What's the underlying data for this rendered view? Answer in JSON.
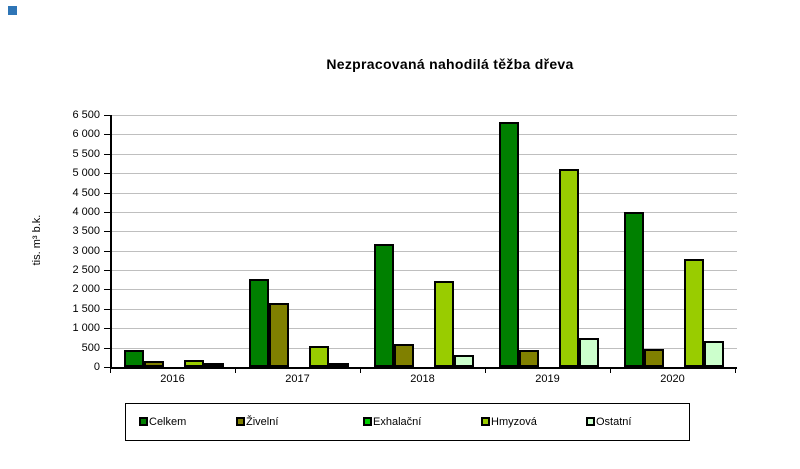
{
  "decorations": {
    "corner_marker_color": "#2E75B6",
    "gridline_color": "#BFBFBF",
    "axis_color": "#000000"
  },
  "chart_data": {
    "type": "bar",
    "title": "Nezpracovaná nahodilá těžba dřeva",
    "xlabel": "",
    "ylabel": "tis. m³ b.k.",
    "categories": [
      "2016",
      "2017",
      "2018",
      "2019",
      "2020"
    ],
    "series": [
      {
        "name": "Celkem",
        "color": "#008000",
        "values": [
          450,
          2280,
          3170,
          6330,
          4000
        ]
      },
      {
        "name": "Živelní",
        "color": "#808000",
        "values": [
          150,
          1650,
          600,
          440,
          470
        ]
      },
      {
        "name": "Exhalační",
        "color": "#00CC00",
        "values": [
          0,
          0,
          0,
          0,
          0
        ]
      },
      {
        "name": "Hmyzová",
        "color": "#99CC00",
        "values": [
          190,
          530,
          2230,
          5120,
          2790
        ]
      },
      {
        "name": "Ostatní",
        "color": "#CCFFCC",
        "values": [
          60,
          100,
          310,
          750,
          680
        ]
      }
    ],
    "ylim": [
      0,
      6500
    ],
    "ytick_step": 500,
    "grid": true,
    "legend_position": "bottom"
  }
}
